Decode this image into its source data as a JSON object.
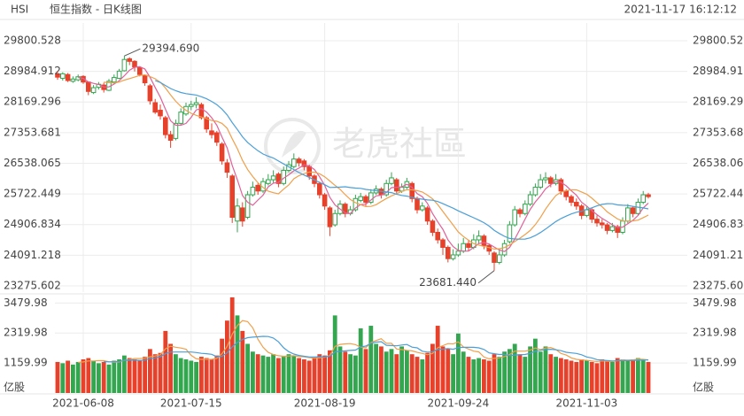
{
  "header": {
    "symbol": "HSI",
    "title": "恒生指数 - 日K线图",
    "time": "2021-11-17 16:12:12"
  },
  "watermark": "老虎社區",
  "chart_data": {
    "type": "candlestick",
    "categories": [
      null,
      null,
      null,
      null,
      null,
      "2021-06-08",
      null,
      null,
      null,
      null,
      null,
      null,
      null,
      null,
      null,
      null,
      null,
      null,
      null,
      null,
      null,
      null,
      null,
      null,
      null,
      null,
      "2021-07-15",
      null,
      null,
      null,
      null,
      null,
      null,
      null,
      null,
      null,
      null,
      null,
      null,
      null,
      null,
      null,
      null,
      null,
      null,
      null,
      null,
      null,
      null,
      null,
      null,
      null,
      "2021-08-19",
      null,
      null,
      null,
      null,
      null,
      null,
      null,
      null,
      null,
      null,
      null,
      null,
      null,
      null,
      null,
      null,
      null,
      null,
      null,
      null,
      null,
      null,
      null,
      null,
      null,
      "2021-09-24",
      null,
      null,
      null,
      null,
      null,
      null,
      null,
      null,
      null,
      null,
      null,
      null,
      null,
      null,
      null,
      null,
      null,
      null,
      null,
      null,
      null,
      null,
      null,
      null,
      "2021-11-03",
      null,
      null,
      null,
      null,
      null,
      null,
      null,
      null,
      null,
      null,
      null,
      null
    ],
    "ohlc": [
      [
        28900,
        28980,
        28760,
        28830
      ],
      [
        28800,
        28960,
        28740,
        28920
      ],
      [
        28900,
        28940,
        28700,
        28740
      ],
      [
        28720,
        28850,
        28680,
        28780
      ],
      [
        28760,
        28900,
        28720,
        28840
      ],
      [
        28850,
        28880,
        28650,
        28700
      ],
      [
        28700,
        28720,
        28350,
        28450
      ],
      [
        28420,
        28620,
        28380,
        28550
      ],
      [
        28560,
        28700,
        28500,
        28640
      ],
      [
        28620,
        28680,
        28420,
        28500
      ],
      [
        28480,
        28780,
        28460,
        28720
      ],
      [
        28700,
        28900,
        28650,
        28820
      ],
      [
        28800,
        29050,
        28780,
        28990
      ],
      [
        29000,
        29394.69,
        28980,
        29300
      ],
      [
        29320,
        29360,
        29150,
        29250
      ],
      [
        29250,
        29280,
        28980,
        29100
      ],
      [
        29080,
        29120,
        28850,
        28900
      ],
      [
        28880,
        28900,
        28600,
        28680
      ],
      [
        28600,
        28650,
        28100,
        28200
      ],
      [
        28150,
        28250,
        27850,
        27900
      ],
      [
        27950,
        28100,
        27700,
        27800
      ],
      [
        27750,
        27800,
        27200,
        27300
      ],
      [
        27300,
        27400,
        26950,
        27150
      ],
      [
        27200,
        27700,
        27150,
        27600
      ],
      [
        27600,
        28000,
        27550,
        27900
      ],
      [
        27850,
        28150,
        27800,
        28050
      ],
      [
        28050,
        28200,
        27950,
        28100
      ],
      [
        28100,
        28300,
        28000,
        28150
      ],
      [
        28100,
        28150,
        27700,
        27750
      ],
      [
        27750,
        27800,
        27350,
        27450
      ],
      [
        27400,
        27600,
        27200,
        27300
      ],
      [
        27350,
        27400,
        27000,
        27100
      ],
      [
        27050,
        27100,
        26500,
        26600
      ],
      [
        26550,
        26650,
        26150,
        26300
      ],
      [
        26200,
        26250,
        24950,
        25100
      ],
      [
        25000,
        25600,
        24700,
        25400
      ],
      [
        25350,
        25500,
        24850,
        25000
      ],
      [
        25100,
        25800,
        25050,
        25700
      ],
      [
        25700,
        26050,
        25650,
        25900
      ],
      [
        25950,
        26000,
        25700,
        25800
      ],
      [
        25800,
        26150,
        25750,
        26050
      ],
      [
        26000,
        26250,
        25950,
        26100
      ],
      [
        26100,
        26350,
        26000,
        26200
      ],
      [
        26250,
        26300,
        25900,
        26000
      ],
      [
        26000,
        26450,
        25950,
        26350
      ],
      [
        26350,
        26600,
        26300,
        26500
      ],
      [
        26450,
        26800,
        26400,
        26650
      ],
      [
        26650,
        26700,
        26450,
        26550
      ],
      [
        26600,
        26650,
        26350,
        26450
      ],
      [
        26450,
        26500,
        26100,
        26200
      ],
      [
        26200,
        26250,
        25900,
        26000
      ],
      [
        26000,
        26050,
        25600,
        25700
      ],
      [
        25700,
        25750,
        25300,
        25400
      ],
      [
        25350,
        25400,
        24600,
        24850
      ],
      [
        24900,
        25300,
        24850,
        25200
      ],
      [
        25200,
        25550,
        25150,
        25450
      ],
      [
        25450,
        25500,
        25100,
        25200
      ],
      [
        25200,
        25400,
        25150,
        25300
      ],
      [
        25300,
        25700,
        25250,
        25600
      ],
      [
        25550,
        25750,
        25500,
        25650
      ],
      [
        25650,
        25700,
        25400,
        25500
      ],
      [
        25500,
        25850,
        25450,
        25750
      ],
      [
        25750,
        25950,
        25700,
        25850
      ],
      [
        25850,
        25900,
        25600,
        25700
      ],
      [
        25700,
        26100,
        25650,
        26000
      ],
      [
        26000,
        26300,
        25950,
        26150
      ],
      [
        26100,
        26150,
        25700,
        25800
      ],
      [
        25800,
        26000,
        25750,
        25900
      ],
      [
        25900,
        26150,
        25850,
        26050
      ],
      [
        26000,
        26050,
        25500,
        25600
      ],
      [
        25600,
        25650,
        25200,
        25300
      ],
      [
        25300,
        25500,
        25250,
        25400
      ],
      [
        25350,
        25400,
        24900,
        25000
      ],
      [
        25000,
        25050,
        24600,
        24700
      ],
      [
        24700,
        24800,
        24400,
        24500
      ],
      [
        24500,
        24550,
        24100,
        24300
      ],
      [
        24300,
        24350,
        23900,
        24000
      ],
      [
        24000,
        24250,
        23950,
        24100
      ],
      [
        24100,
        24400,
        24050,
        24200
      ],
      [
        24200,
        24550,
        24150,
        24400
      ],
      [
        24400,
        24500,
        24200,
        24300
      ],
      [
        24300,
        24650,
        24250,
        24500
      ],
      [
        24500,
        24750,
        24400,
        24600
      ],
      [
        24600,
        24650,
        24250,
        24350
      ],
      [
        24350,
        24400,
        24100,
        24200
      ],
      [
        24150,
        24200,
        23681.44,
        23900
      ],
      [
        23900,
        24250,
        23850,
        24100
      ],
      [
        24100,
        24500,
        24050,
        24400
      ],
      [
        24450,
        25000,
        24400,
        24900
      ],
      [
        24900,
        25400,
        24850,
        25300
      ],
      [
        25300,
        25350,
        25100,
        25200
      ],
      [
        25200,
        25550,
        25150,
        25450
      ],
      [
        25450,
        25800,
        25400,
        25700
      ],
      [
        25700,
        26000,
        25650,
        25900
      ],
      [
        25900,
        26250,
        25850,
        26100
      ],
      [
        26100,
        26300,
        26000,
        26150
      ],
      [
        26150,
        26200,
        25900,
        26000
      ],
      [
        26000,
        26250,
        25950,
        26100
      ],
      [
        26100,
        26150,
        25700,
        25800
      ],
      [
        25800,
        25850,
        25550,
        25650
      ],
      [
        25650,
        25700,
        25400,
        25500
      ],
      [
        25500,
        25600,
        25300,
        25400
      ],
      [
        25400,
        25450,
        25050,
        25150
      ],
      [
        25150,
        25400,
        25100,
        25300
      ],
      [
        25300,
        25350,
        24950,
        25050
      ],
      [
        25050,
        25150,
        24850,
        24950
      ],
      [
        24950,
        25050,
        24800,
        24900
      ],
      [
        24900,
        24950,
        24650,
        24750
      ],
      [
        24750,
        24950,
        24700,
        24850
      ],
      [
        24850,
        24900,
        24550,
        24700
      ],
      [
        24700,
        25100,
        24650,
        25000
      ],
      [
        25000,
        25450,
        24950,
        25350
      ],
      [
        25350,
        25400,
        25100,
        25200
      ],
      [
        25200,
        25600,
        25150,
        25500
      ],
      [
        25500,
        25800,
        25450,
        25700
      ],
      [
        25700,
        25750,
        25600,
        25650
      ]
    ],
    "volume": [
      1200,
      1150,
      1250,
      1100,
      1200,
      1300,
      1350,
      1250,
      1150,
      1200,
      1100,
      1250,
      1300,
      1450,
      1350,
      1300,
      1250,
      1400,
      1700,
      1500,
      1550,
      2400,
      1900,
      1500,
      1350,
      1300,
      1250,
      1200,
      1400,
      1350,
      1300,
      1450,
      2100,
      2800,
      3700,
      3000,
      2400,
      1900,
      1600,
      1500,
      1450,
      1400,
      1500,
      1350,
      1400,
      1500,
      1450,
      1350,
      1300,
      1250,
      1400,
      1500,
      1450,
      1650,
      3000,
      1800,
      1600,
      1500,
      1450,
      2500,
      1700,
      2600,
      1900,
      1800,
      1600,
      1700,
      1500,
      1800,
      1650,
      1500,
      1400,
      1300,
      1550,
      1900,
      2600,
      1800,
      1700,
      1500,
      2300,
      1600,
      1400,
      1300,
      1350,
      1300,
      1250,
      1500,
      1400,
      1600,
      1700,
      1900,
      1500,
      1400,
      1800,
      2100,
      1600,
      1800,
      1500,
      1400,
      1350,
      1300,
      1250,
      1200,
      1300,
      1250,
      1200,
      1150,
      1300,
      1250,
      1200,
      1350,
      1300,
      1250,
      1300,
      1350,
      1300,
      1200
    ],
    "up_color": "#33a64f",
    "down_color": "#e8412b",
    "ma_colors": [
      "#e0619a",
      "#f0a04a",
      "#4a9fd8"
    ],
    "ylim": [
      23110,
      29941
    ],
    "yticks": [
      23275.602,
      24091.218,
      24906.834,
      25722.449,
      26538.065,
      27353.681,
      28169.296,
      28984.912,
      29800.528
    ],
    "volume_lim": [
      0,
      3800
    ],
    "volume_ticks": [
      1159.99,
      2319.98,
      3479.98
    ],
    "volume_unit": "亿股",
    "high_label": "29394.690",
    "low_label": "23681.440",
    "grid": true
  }
}
